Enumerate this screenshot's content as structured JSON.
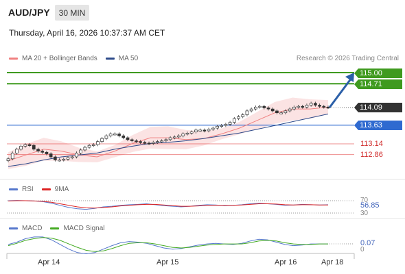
{
  "header": {
    "pair": "AUD/JPY",
    "timeframe": "30 MIN",
    "datetime": "Thursday, April 16, 2026 10:37:37 AM CET",
    "credit": "Research © 2026 Trading Central"
  },
  "main_legend": [
    {
      "label": "MA 20 + Bollinger Bands",
      "color": "#f08080"
    },
    {
      "label": "MA 50",
      "color": "#2d4a8a"
    }
  ],
  "rsi_legend": [
    {
      "label": "RSI",
      "color": "#5577cc"
    },
    {
      "label": "9MA",
      "color": "#dd2222"
    }
  ],
  "macd_legend": [
    {
      "label": "MACD",
      "color": "#5577cc"
    },
    {
      "label": "MACD Signal",
      "color": "#44aa22"
    }
  ],
  "levels": {
    "target_2": {
      "label": "115.00",
      "value": 115.0,
      "color": "#3f9a1f"
    },
    "target_1": {
      "label": "114.71",
      "value": 114.71,
      "color": "#3f9a1f"
    },
    "last": {
      "label": "114.09",
      "value": 114.09,
      "color": "#333333"
    },
    "pivot": {
      "label": "113.63",
      "value": 113.63,
      "color": "#2f6ad0"
    },
    "support_1": {
      "label": "113.14",
      "value": 113.14,
      "color": "#e03030"
    },
    "support_2": {
      "label": "112.86",
      "value": 112.86,
      "color": "#e03030"
    }
  },
  "rsi_axis": {
    "upper": "70",
    "lower": "30",
    "current": "56.85"
  },
  "macd_axis": {
    "zero": "0",
    "current": "0.07"
  },
  "x_labels": [
    "Apr 14",
    "Apr 15",
    "Apr 16",
    "Apr 18"
  ],
  "chart_data": [
    {
      "type": "candlestick",
      "title": "AUD/JPY",
      "ylim": [
        112.3,
        115.3
      ],
      "series": [
        {
          "name": "Close",
          "values": [
            112.75,
            112.9,
            113.0,
            113.08,
            113.12,
            113.1,
            113.0,
            112.95,
            112.92,
            112.88,
            112.8,
            112.72,
            112.72,
            112.74,
            112.78,
            112.8,
            112.9,
            112.98,
            113.05,
            113.1,
            113.12,
            113.2,
            113.28,
            113.35,
            113.4,
            113.4,
            113.35,
            113.3,
            113.25,
            113.22,
            113.2,
            113.18,
            113.16,
            113.15,
            113.18,
            113.2,
            113.22,
            113.25,
            113.3,
            113.32,
            113.35,
            113.4,
            113.42,
            113.45,
            113.5,
            113.5,
            113.48,
            113.52,
            113.55,
            113.6,
            113.62,
            113.65,
            113.7,
            113.8,
            113.85,
            113.9,
            114.0,
            114.05,
            114.1,
            114.12,
            114.08,
            114.05,
            114.0,
            113.95,
            113.95,
            114.0,
            114.05,
            114.1,
            114.12,
            114.1,
            114.15,
            114.2,
            114.15,
            114.12,
            114.1,
            114.09
          ]
        },
        {
          "name": "MA 20",
          "values": [
            112.7,
            112.85,
            113.0,
            112.95,
            112.85,
            112.8,
            112.95,
            113.15,
            113.3,
            113.3,
            113.25,
            113.28,
            113.4,
            113.55,
            113.75,
            113.95,
            114.05,
            114.05,
            114.1
          ]
        },
        {
          "name": "MA 50",
          "values": [
            112.55,
            112.62,
            112.72,
            112.8,
            112.85,
            112.9,
            113.0,
            113.08,
            113.15,
            113.18,
            113.22,
            113.28,
            113.35,
            113.42,
            113.52,
            113.62,
            113.72,
            113.82,
            113.92
          ]
        }
      ]
    },
    {
      "type": "line",
      "title": "RSI",
      "ylim": [
        20,
        80
      ],
      "series": [
        {
          "name": "RSI",
          "values": [
            70,
            71,
            70,
            69,
            67,
            62,
            55,
            48,
            44,
            42,
            45,
            50,
            52,
            55,
            57,
            58,
            60,
            57,
            54,
            52,
            50,
            52,
            55,
            57,
            56,
            54,
            55,
            57,
            60,
            62,
            60,
            58,
            55,
            56,
            58,
            57,
            56,
            57
          ]
        },
        {
          "name": "9MA",
          "values": [
            69,
            70,
            70,
            69,
            68,
            65,
            60,
            55,
            50,
            47,
            46,
            48,
            50,
            53,
            55,
            57,
            58,
            58,
            56,
            54,
            52,
            52,
            53,
            55,
            55,
            55,
            55,
            56,
            58,
            60,
            60,
            59,
            57,
            56,
            57,
            57,
            56,
            56
          ]
        }
      ]
    },
    {
      "type": "line",
      "title": "MACD",
      "series": [
        {
          "name": "MACD",
          "values": [
            0.06,
            0.1,
            0.16,
            0.19,
            0.19,
            0.14,
            0.06,
            -0.02,
            -0.08,
            -0.1,
            -0.08,
            -0.02,
            0.04,
            0.09,
            0.11,
            0.1,
            0.08,
            0.04,
            0.0,
            -0.02,
            -0.01,
            0.02,
            0.05,
            0.07,
            0.08,
            0.07,
            0.06,
            0.08,
            0.12,
            0.15,
            0.14,
            0.1,
            0.06,
            0.04,
            0.05,
            0.07,
            0.07,
            0.07
          ]
        },
        {
          "name": "MACD Signal",
          "values": [
            0.04,
            0.08,
            0.13,
            0.16,
            0.18,
            0.17,
            0.13,
            0.07,
            0.01,
            -0.04,
            -0.06,
            -0.05,
            -0.01,
            0.04,
            0.08,
            0.09,
            0.09,
            0.07,
            0.04,
            0.01,
            0.0,
            0.01,
            0.03,
            0.05,
            0.06,
            0.07,
            0.07,
            0.07,
            0.09,
            0.12,
            0.13,
            0.12,
            0.09,
            0.07,
            0.06,
            0.06,
            0.07,
            0.07
          ]
        }
      ]
    }
  ]
}
